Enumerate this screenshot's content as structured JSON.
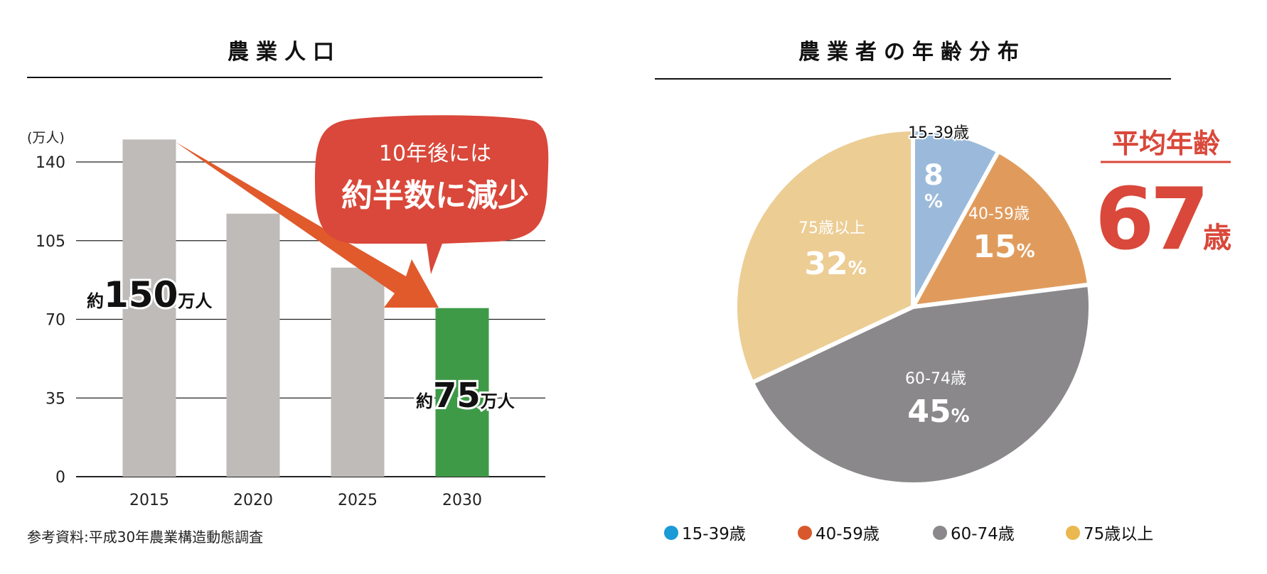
{
  "chart_data": [
    {
      "type": "bar",
      "title": "農業人口",
      "ylabel": "(万人)",
      "xlabel": "",
      "categories": [
        "2015",
        "2020",
        "2025",
        "2030"
      ],
      "values": [
        150,
        117,
        93,
        75
      ],
      "ylim": [
        0,
        140
      ],
      "yticks": [
        0,
        35,
        70,
        105,
        140
      ],
      "grid": true,
      "highlight_color": "#3f9a48",
      "bar_color": "#bebbb9",
      "annotations": {
        "bar_label_2015": {
          "prefix": "約",
          "value": "150",
          "unit": "万人"
        },
        "bar_label_2030": {
          "prefix": "約",
          "value": "75",
          "unit": "万人"
        },
        "callout_line1": "10年後には",
        "callout_line2": "約半数に減少",
        "callout_color": "#d9483a",
        "arrow_color": "#e05a2c"
      },
      "source": "参考資料:平成30年農業構造動態調査"
    },
    {
      "type": "pie",
      "title": "農業者の年齢分布",
      "categories": [
        "15-39歳",
        "40-59歳",
        "60-74歳",
        "75歳以上"
      ],
      "values": [
        8,
        15,
        45,
        32
      ],
      "slice_labels": [
        "15-39歳",
        "40-59歳",
        "60-74歳",
        "75歳以上"
      ],
      "value_labels": [
        "8",
        "15",
        "45",
        "32"
      ],
      "percent_sign": "%",
      "slice_colors": [
        "#9bbadb",
        "#e09b5c",
        "#8a888b",
        "#eccd94"
      ],
      "legend": {
        "position": "bottom",
        "items": [
          {
            "label": "15-39歳",
            "color": "#1a9ad6"
          },
          {
            "label": "40-59歳",
            "color": "#d9582b"
          },
          {
            "label": "60-74歳",
            "color": "#8a888b"
          },
          {
            "label": "75歳以上",
            "color": "#eab84e"
          }
        ]
      },
      "average_age": {
        "label": "平均年齢",
        "value": "67",
        "unit": "歳",
        "color": "#d9483a"
      }
    }
  ]
}
